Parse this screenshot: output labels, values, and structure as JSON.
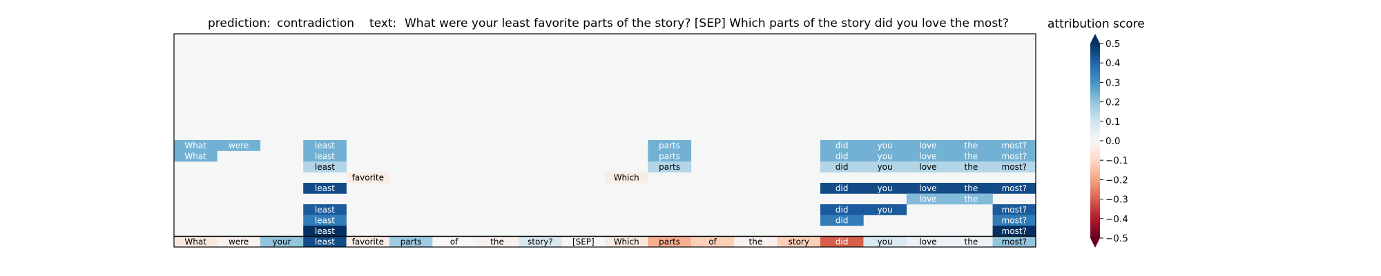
{
  "header": {
    "prediction_label": "prediction:",
    "prediction_value": "contradiction",
    "text_label": "text:",
    "text_value": "What were your least favorite parts of the story? [SEP] Which parts of the story did you love the most?"
  },
  "colorbar": {
    "title": "attribution score",
    "range": [
      -0.5,
      0.5
    ],
    "ticks": [
      0.5,
      0.4,
      0.3,
      0.2,
      0.1,
      0.0,
      -0.1,
      -0.2,
      -0.3,
      -0.4,
      -0.5
    ],
    "tick_labels": [
      "0.5",
      "0.4",
      "0.3",
      "0.2",
      "0.1",
      "0.0",
      "−0.1",
      "−0.2",
      "−0.3",
      "−0.4",
      "−0.5"
    ],
    "colormap": "RdBu",
    "extend": "both"
  },
  "chart_data": {
    "type": "heatmap",
    "title": "attribution score",
    "tokens": [
      "What",
      "were",
      "your",
      "least",
      "favorite",
      "parts",
      "of",
      "the",
      "story?",
      "[SEP]",
      "Which",
      "parts",
      "of",
      "the",
      "story",
      "did",
      "you",
      "love",
      "the",
      "most?"
    ],
    "input_scores": [
      -0.05,
      -0.02,
      0.2,
      0.45,
      -0.03,
      0.18,
      0.0,
      -0.02,
      0.08,
      0.0,
      -0.05,
      -0.18,
      -0.12,
      -0.02,
      -0.12,
      -0.3,
      0.08,
      0.03,
      0.03,
      0.2
    ],
    "rows": [
      {
        "cells": [
          {
            "col": 0,
            "text": "What",
            "value": 0.24
          },
          {
            "col": 1,
            "text": "were",
            "value": 0.24
          },
          {
            "col": 3,
            "text": "least",
            "value": 0.24
          },
          {
            "col": 11,
            "text": "parts",
            "value": 0.24
          },
          {
            "col": 15,
            "text": "did",
            "value": 0.24
          },
          {
            "col": 16,
            "text": "you",
            "value": 0.24
          },
          {
            "col": 17,
            "text": "love",
            "value": 0.24
          },
          {
            "col": 18,
            "text": "the",
            "value": 0.24
          },
          {
            "col": 19,
            "text": "most?",
            "value": 0.24
          }
        ]
      },
      {
        "cells": [
          {
            "col": 0,
            "text": "What",
            "value": 0.24
          },
          {
            "col": 3,
            "text": "least",
            "value": 0.24
          },
          {
            "col": 11,
            "text": "parts",
            "value": 0.24
          },
          {
            "col": 15,
            "text": "did",
            "value": 0.24
          },
          {
            "col": 16,
            "text": "you",
            "value": 0.24
          },
          {
            "col": 17,
            "text": "love",
            "value": 0.24
          },
          {
            "col": 18,
            "text": "the",
            "value": 0.24
          },
          {
            "col": 19,
            "text": "most?",
            "value": 0.24
          }
        ]
      },
      {
        "cells": [
          {
            "col": 3,
            "text": "least",
            "value": 0.15
          },
          {
            "col": 11,
            "text": "parts",
            "value": 0.15
          },
          {
            "col": 15,
            "text": "did",
            "value": 0.15
          },
          {
            "col": 16,
            "text": "you",
            "value": 0.15
          },
          {
            "col": 17,
            "text": "love",
            "value": 0.15
          },
          {
            "col": 18,
            "text": "the",
            "value": 0.15
          },
          {
            "col": 19,
            "text": "most?",
            "value": 0.15
          }
        ]
      },
      {
        "cells": [
          {
            "col": 4,
            "text": "favorite",
            "value": -0.04
          },
          {
            "col": 10,
            "text": "Which",
            "value": -0.04
          }
        ]
      },
      {
        "cells": [
          {
            "col": 3,
            "text": "least",
            "value": 0.45
          },
          {
            "col": 15,
            "text": "did",
            "value": 0.45
          },
          {
            "col": 16,
            "text": "you",
            "value": 0.45
          },
          {
            "col": 17,
            "text": "love",
            "value": 0.45
          },
          {
            "col": 18,
            "text": "the",
            "value": 0.45
          },
          {
            "col": 19,
            "text": "most?",
            "value": 0.45
          }
        ]
      },
      {
        "cells": [
          {
            "col": 17,
            "text": "love",
            "value": 0.22
          },
          {
            "col": 18,
            "text": "the",
            "value": 0.22
          }
        ]
      },
      {
        "cells": [
          {
            "col": 3,
            "text": "least",
            "value": 0.42
          },
          {
            "col": 15,
            "text": "did",
            "value": 0.42
          },
          {
            "col": 16,
            "text": "you",
            "value": 0.42
          },
          {
            "col": 19,
            "text": "most?",
            "value": 0.42
          }
        ]
      },
      {
        "cells": [
          {
            "col": 3,
            "text": "least",
            "value": 0.35
          },
          {
            "col": 15,
            "text": "did",
            "value": 0.35
          },
          {
            "col": 19,
            "text": "most?",
            "value": 0.35
          }
        ]
      },
      {
        "cells": [
          {
            "col": 3,
            "text": "least",
            "value": 0.5
          },
          {
            "col": 19,
            "text": "most?",
            "value": 0.5
          }
        ]
      }
    ]
  }
}
